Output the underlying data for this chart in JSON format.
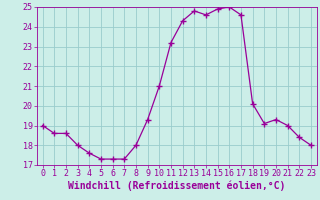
{
  "x": [
    0,
    1,
    2,
    3,
    4,
    5,
    6,
    7,
    8,
    9,
    10,
    11,
    12,
    13,
    14,
    15,
    16,
    17,
    18,
    19,
    20,
    21,
    22,
    23
  ],
  "y": [
    19.0,
    18.6,
    18.6,
    18.0,
    17.6,
    17.3,
    17.3,
    17.3,
    18.0,
    19.3,
    21.0,
    23.2,
    24.3,
    24.8,
    24.6,
    24.9,
    25.0,
    24.6,
    20.1,
    19.1,
    19.3,
    19.0,
    18.4,
    18.0
  ],
  "line_color": "#990099",
  "marker": "+",
  "marker_size": 4,
  "bg_color": "#cceee8",
  "grid_color": "#99cccc",
  "xlabel": "Windchill (Refroidissement éolien,°C)",
  "ylim": [
    17,
    25
  ],
  "xlim": [
    -0.5,
    23.5
  ],
  "yticks": [
    17,
    18,
    19,
    20,
    21,
    22,
    23,
    24,
    25
  ],
  "xticks": [
    0,
    1,
    2,
    3,
    4,
    5,
    6,
    7,
    8,
    9,
    10,
    11,
    12,
    13,
    14,
    15,
    16,
    17,
    18,
    19,
    20,
    21,
    22,
    23
  ],
  "tick_fontsize": 6,
  "xlabel_fontsize": 7
}
